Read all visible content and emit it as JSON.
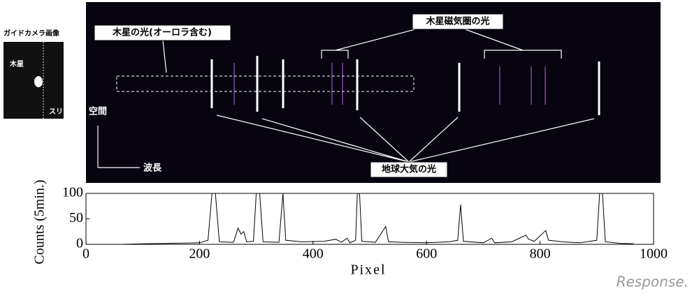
{
  "chart_data": {
    "type": "line",
    "xlabel": "Pixel",
    "ylabel": "Counts (5min.)",
    "annotations": {
      "jupiter_light": "木星の光(オーロラ含む)",
      "magnetosphere_light": "木星磁気圏の光",
      "earth_atmosphere_light": "地球大気の光",
      "space_axis": "空間",
      "wavelength_axis": "波長",
      "guide_camera": "ガイドカメラ画像",
      "jupiter": "木星",
      "slit": "スリット"
    },
    "watermark": "Response.",
    "xlim": [
      0,
      1000
    ],
    "xticks": [
      0,
      200,
      400,
      600,
      800,
      1000
    ],
    "ylim": [
      0,
      100
    ],
    "yticks": [
      0,
      50,
      100
    ],
    "series": [
      {
        "name": "Counts",
        "color": "#000000",
        "x": [
          60,
          100,
          150,
          200,
          215,
          222,
          228,
          235,
          260,
          268,
          273,
          278,
          283,
          295,
          300,
          306,
          312,
          340,
          347,
          352,
          380,
          420,
          440,
          450,
          460,
          465,
          475,
          478,
          482,
          486,
          510,
          528,
          533,
          560,
          600,
          640,
          655,
          660,
          665,
          700,
          715,
          720,
          750,
          775,
          780,
          790,
          805,
          810,
          815,
          840,
          870,
          900,
          905,
          910,
          915,
          940,
          965
        ],
        "values": [
          0,
          1,
          2,
          3,
          8,
          100,
          100,
          5,
          4,
          32,
          20,
          25,
          5,
          6,
          100,
          100,
          5,
          4,
          100,
          8,
          5,
          6,
          10,
          4,
          12,
          3,
          8,
          100,
          100,
          6,
          4,
          35,
          5,
          4,
          3,
          5,
          8,
          78,
          6,
          3,
          12,
          3,
          5,
          18,
          10,
          6,
          22,
          27,
          8,
          5,
          3,
          8,
          100,
          100,
          5,
          2,
          1
        ]
      }
    ]
  }
}
